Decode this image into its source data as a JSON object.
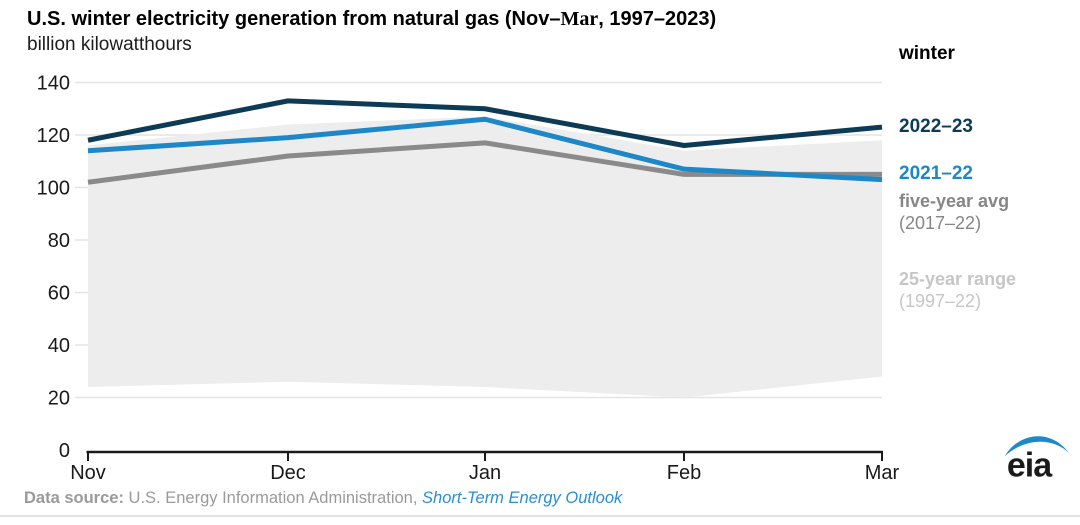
{
  "header": {
    "title_pre": "U.S. winter electricity generation from natural gas (Nov–",
    "title_serif": "Mar",
    "title_post": ", 1997–2023)",
    "unit_label": "billion kilowatthours"
  },
  "legend": {
    "header": "winter",
    "items": [
      {
        "label": "2022–23",
        "color": "#0d3a54"
      },
      {
        "label": "2021–22",
        "color": "#1d87c8"
      },
      {
        "label": "five-year avg",
        "sub": "(2017–22)",
        "color": "#868686"
      },
      {
        "label": "25-year range",
        "sub": "(1997–22)",
        "color": "#c6c6c6"
      }
    ]
  },
  "footer": {
    "source_label": "Data source:",
    "source_text": " U.S. Energy Information Administration, ",
    "source_link": "Short-Term Energy Outlook"
  },
  "logo": {
    "text": "eia",
    "swoosh_color": "#1d8ac8",
    "text_color": "#3c3c3c"
  },
  "chart_data": {
    "type": "line",
    "title": "U.S. winter electricity generation from natural gas (Nov–Mar, 1997–2023)",
    "xlabel": "",
    "ylabel": "billion kilowatthours",
    "categories": [
      "Nov",
      "Dec",
      "Jan",
      "Feb",
      "Mar"
    ],
    "series": [
      {
        "name": "2022–23",
        "color": "#0d3a54",
        "values": [
          118,
          133,
          130,
          116,
          123
        ]
      },
      {
        "name": "2021–22",
        "color": "#1d87c8",
        "values": [
          114,
          119,
          126,
          107,
          103
        ]
      },
      {
        "name": "five-year avg (2017–22)",
        "color": "#8a8a8a",
        "values": [
          102,
          112,
          117,
          105,
          105
        ]
      }
    ],
    "range_band": {
      "name": "25-year range (1997–22)",
      "color": "#ededed",
      "top": [
        116,
        124,
        127,
        114,
        118
      ],
      "bottom": [
        24,
        26,
        24,
        20,
        28
      ]
    },
    "ylim": [
      0,
      140
    ],
    "ytick_step": 20,
    "grid": "horizontal",
    "gridline_color": "#e4e4e4",
    "legend_position": "right"
  }
}
